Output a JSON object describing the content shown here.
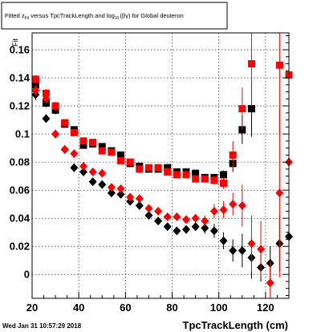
{
  "title": {
    "prefix": "Fitted  z",
    "z_sub": "Fit",
    "middle": " versus TpcTrackLength and log",
    "log_sub": "10",
    "suffix": "(βγ) for Global deuteron"
  },
  "footer": {
    "timestamp": "Wed Jan 31 10:57:29 2018"
  },
  "chart_data": {
    "type": "scatter",
    "title": "Fitted z_Fit versus TpcTrackLength and log_10(βγ) for Global deuteron",
    "xlabel": "TpcTrackLength (cm)",
    "ylabel": "Fit",
    "xlim": [
      20,
      130
    ],
    "ylim": [
      -0.017,
      0.172
    ],
    "x_ticks": [
      20,
      40,
      60,
      80,
      100,
      120
    ],
    "x_tick_labels": [
      "20",
      "40",
      "60",
      "80",
      "100",
      "120"
    ],
    "y_ticks": [
      0,
      0.02,
      0.04,
      0.06,
      0.08,
      0.1,
      0.12,
      0.14,
      0.16
    ],
    "y_tick_labels": [
      "0",
      "0.02",
      "0.04",
      "0.06",
      "0.08",
      "0.1",
      "0.12",
      "0.14",
      "0.16"
    ],
    "grid": true,
    "series": [
      {
        "color": "#000000",
        "marker": "square",
        "points": [
          {
            "x": 21.5,
            "y": 0.135,
            "err": 0.003
          },
          {
            "x": 26,
            "y": 0.122,
            "err": 0.003
          },
          {
            "x": 30,
            "y": 0.117,
            "err": 0.003
          },
          {
            "x": 34,
            "y": 0.107,
            "err": 0.002
          },
          {
            "x": 38,
            "y": 0.103,
            "err": 0.002
          },
          {
            "x": 42,
            "y": 0.092,
            "err": 0.002
          },
          {
            "x": 46,
            "y": 0.093,
            "err": 0.002
          },
          {
            "x": 50,
            "y": 0.091,
            "err": 0.002
          },
          {
            "x": 54,
            "y": 0.088,
            "err": 0.002
          },
          {
            "x": 58,
            "y": 0.085,
            "err": 0.002
          },
          {
            "x": 62,
            "y": 0.079,
            "err": 0.002
          },
          {
            "x": 66,
            "y": 0.077,
            "err": 0.002
          },
          {
            "x": 70,
            "y": 0.075,
            "err": 0.002
          },
          {
            "x": 74,
            "y": 0.075,
            "err": 0.002
          },
          {
            "x": 78,
            "y": 0.076,
            "err": 0.002
          },
          {
            "x": 82,
            "y": 0.073,
            "err": 0.002
          },
          {
            "x": 86,
            "y": 0.073,
            "err": 0.002
          },
          {
            "x": 90,
            "y": 0.072,
            "err": 0.002
          },
          {
            "x": 94,
            "y": 0.069,
            "err": 0.002
          },
          {
            "x": 98,
            "y": 0.069,
            "err": 0.002
          },
          {
            "x": 102,
            "y": 0.071,
            "err": 0.003
          },
          {
            "x": 106,
            "y": 0.079,
            "err": 0.006
          },
          {
            "x": 110,
            "y": 0.103,
            "err": 0.01
          },
          {
            "x": 114,
            "y": 0.118,
            "err": 0.02
          }
        ]
      },
      {
        "color": "#ff0000",
        "marker": "square",
        "points": [
          {
            "x": 21.5,
            "y": 0.139,
            "err": 0.003
          },
          {
            "x": 26,
            "y": 0.129,
            "err": 0.003
          },
          {
            "x": 30,
            "y": 0.12,
            "err": 0.003
          },
          {
            "x": 34,
            "y": 0.108,
            "err": 0.002
          },
          {
            "x": 38,
            "y": 0.101,
            "err": 0.002
          },
          {
            "x": 42,
            "y": 0.095,
            "err": 0.002
          },
          {
            "x": 46,
            "y": 0.094,
            "err": 0.002
          },
          {
            "x": 50,
            "y": 0.088,
            "err": 0.002
          },
          {
            "x": 54,
            "y": 0.087,
            "err": 0.002
          },
          {
            "x": 58,
            "y": 0.081,
            "err": 0.002
          },
          {
            "x": 62,
            "y": 0.08,
            "err": 0.002
          },
          {
            "x": 66,
            "y": 0.075,
            "err": 0.002
          },
          {
            "x": 70,
            "y": 0.076,
            "err": 0.002
          },
          {
            "x": 74,
            "y": 0.076,
            "err": 0.002
          },
          {
            "x": 78,
            "y": 0.073,
            "err": 0.002
          },
          {
            "x": 82,
            "y": 0.071,
            "err": 0.002
          },
          {
            "x": 86,
            "y": 0.071,
            "err": 0.002
          },
          {
            "x": 90,
            "y": 0.068,
            "err": 0.002
          },
          {
            "x": 94,
            "y": 0.068,
            "err": 0.002
          },
          {
            "x": 98,
            "y": 0.067,
            "err": 0.003
          },
          {
            "x": 102,
            "y": 0.065,
            "err": 0.004
          },
          {
            "x": 106,
            "y": 0.085,
            "err": 0.01
          },
          {
            "x": 110,
            "y": 0.118,
            "err": 0.015
          },
          {
            "x": 114,
            "y": 0.15,
            "err": 0.03
          },
          {
            "x": 126,
            "y": 0.149,
            "err": 0.05
          },
          {
            "x": 130,
            "y": 0.142,
            "err": 0.06
          }
        ]
      },
      {
        "color": "#000000",
        "marker": "diamond",
        "points": [
          {
            "x": 21.5,
            "y": 0.128,
            "err": 0.004
          },
          {
            "x": 26,
            "y": 0.111,
            "err": 0.003
          },
          {
            "x": 30,
            "y": 0.1,
            "err": 0.003
          },
          {
            "x": 34,
            "y": 0.089,
            "err": 0.003
          },
          {
            "x": 38,
            "y": 0.076,
            "err": 0.003
          },
          {
            "x": 42,
            "y": 0.073,
            "err": 0.003
          },
          {
            "x": 46,
            "y": 0.066,
            "err": 0.002
          },
          {
            "x": 50,
            "y": 0.064,
            "err": 0.002
          },
          {
            "x": 54,
            "y": 0.058,
            "err": 0.002
          },
          {
            "x": 58,
            "y": 0.057,
            "err": 0.002
          },
          {
            "x": 62,
            "y": 0.052,
            "err": 0.002
          },
          {
            "x": 66,
            "y": 0.049,
            "err": 0.002
          },
          {
            "x": 70,
            "y": 0.042,
            "err": 0.002
          },
          {
            "x": 74,
            "y": 0.038,
            "err": 0.002
          },
          {
            "x": 78,
            "y": 0.034,
            "err": 0.002
          },
          {
            "x": 82,
            "y": 0.031,
            "err": 0.002
          },
          {
            "x": 86,
            "y": 0.032,
            "err": 0.002
          },
          {
            "x": 90,
            "y": 0.034,
            "err": 0.003
          },
          {
            "x": 94,
            "y": 0.033,
            "err": 0.004
          },
          {
            "x": 98,
            "y": 0.031,
            "err": 0.005
          },
          {
            "x": 102,
            "y": 0.024,
            "err": 0.006
          },
          {
            "x": 106,
            "y": 0.017,
            "err": 0.008
          },
          {
            "x": 110,
            "y": 0.017,
            "err": 0.012
          },
          {
            "x": 114,
            "y": 0.012,
            "err": 0.015
          },
          {
            "x": 118,
            "y": 0.005,
            "err": 0.01
          },
          {
            "x": 122,
            "y": 0.008,
            "err": 0.012
          },
          {
            "x": 126,
            "y": 0.022,
            "err": 0.02
          },
          {
            "x": 130,
            "y": 0.027,
            "err": 0.025
          }
        ]
      },
      {
        "color": "#ff0000",
        "marker": "diamond",
        "points": [
          {
            "x": 21.5,
            "y": 0.131,
            "err": 0.004
          },
          {
            "x": 26,
            "y": 0.125,
            "err": 0.003
          },
          {
            "x": 30,
            "y": 0.1,
            "err": 0.003
          },
          {
            "x": 34,
            "y": 0.089,
            "err": 0.003
          },
          {
            "x": 38,
            "y": 0.086,
            "err": 0.002
          },
          {
            "x": 42,
            "y": 0.077,
            "err": 0.002
          },
          {
            "x": 46,
            "y": 0.073,
            "err": 0.002
          },
          {
            "x": 50,
            "y": 0.072,
            "err": 0.002
          },
          {
            "x": 54,
            "y": 0.062,
            "err": 0.002
          },
          {
            "x": 58,
            "y": 0.061,
            "err": 0.002
          },
          {
            "x": 62,
            "y": 0.055,
            "err": 0.002
          },
          {
            "x": 66,
            "y": 0.054,
            "err": 0.002
          },
          {
            "x": 70,
            "y": 0.047,
            "err": 0.002
          },
          {
            "x": 74,
            "y": 0.045,
            "err": 0.002
          },
          {
            "x": 78,
            "y": 0.041,
            "err": 0.002
          },
          {
            "x": 82,
            "y": 0.041,
            "err": 0.002
          },
          {
            "x": 86,
            "y": 0.039,
            "err": 0.002
          },
          {
            "x": 90,
            "y": 0.04,
            "err": 0.003
          },
          {
            "x": 94,
            "y": 0.038,
            "err": 0.004
          },
          {
            "x": 98,
            "y": 0.045,
            "err": 0.005
          },
          {
            "x": 102,
            "y": 0.046,
            "err": 0.006
          },
          {
            "x": 106,
            "y": 0.05,
            "err": 0.008
          },
          {
            "x": 110,
            "y": 0.049,
            "err": 0.015
          },
          {
            "x": 114,
            "y": 0.022,
            "err": 0.02
          },
          {
            "x": 118,
            "y": 0.018,
            "err": 0.02
          },
          {
            "x": 122,
            "y": -0.006,
            "err": 0.015
          },
          {
            "x": 126,
            "y": 0.058,
            "err": 0.06
          },
          {
            "x": 130,
            "y": 0.08,
            "err": 0.08
          }
        ]
      }
    ]
  }
}
